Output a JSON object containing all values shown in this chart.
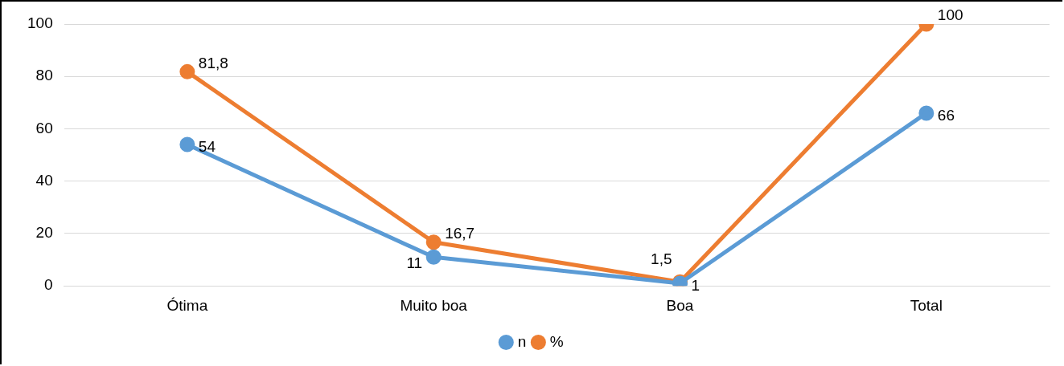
{
  "chart_data": {
    "type": "line",
    "categories": [
      "Ótima",
      "Muito boa",
      "Boa",
      "Total"
    ],
    "series": [
      {
        "name": "n",
        "color": "#5b9bd5",
        "values": [
          54,
          11,
          1,
          66
        ],
        "value_labels": [
          "54",
          "11",
          "1",
          "66"
        ]
      },
      {
        "name": "%",
        "color": "#ed7d31",
        "values": [
          81.8,
          16.7,
          1.5,
          100
        ],
        "value_labels": [
          "81,8",
          "16,7",
          "1,5",
          "100"
        ]
      }
    ],
    "ylim": [
      0,
      100
    ],
    "yticks": [
      0,
      20,
      40,
      60,
      80,
      100
    ],
    "grid": "y",
    "legend": "bottom",
    "marker": "circle",
    "line_style": "solid"
  }
}
